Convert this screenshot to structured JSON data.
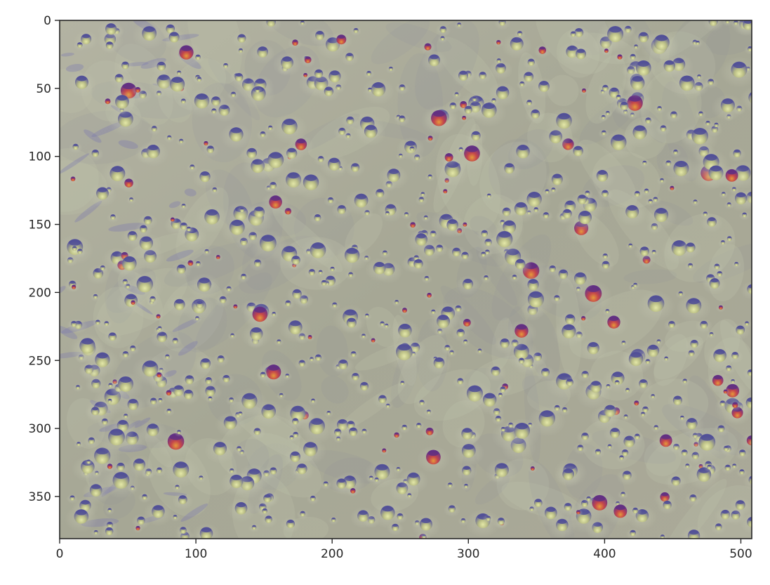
{
  "chart_data": {
    "type": "heatmap",
    "title": "",
    "xlabel": "",
    "ylabel": "",
    "xlim": [
      0,
      508
    ],
    "ylim": [
      381,
      0
    ],
    "y_axis_inverted": true,
    "x_ticks": [
      0,
      100,
      200,
      300,
      400,
      500
    ],
    "x_tick_labels": [
      "0",
      "100",
      "200",
      "300",
      "400",
      "500"
    ],
    "y_ticks": [
      0,
      50,
      100,
      150,
      200,
      250,
      300,
      350
    ],
    "y_tick_labels": [
      "0",
      "50",
      "100",
      "150",
      "200",
      "250",
      "300",
      "350"
    ],
    "grid": false,
    "legend": "none",
    "image_content": "microscopy image of numerous droplets on a surface, grayish-olive background with bluish-purple, yellow-green and red-highlighted droplets",
    "colors": {
      "background": "#a8a896",
      "droplet_shadow": "#5a5a9a",
      "droplet_highlight": "#dfe3a0",
      "droplet_red": "#c24a4a",
      "droplet_purple": "#7a3a8a",
      "axis": "#262626"
    }
  }
}
